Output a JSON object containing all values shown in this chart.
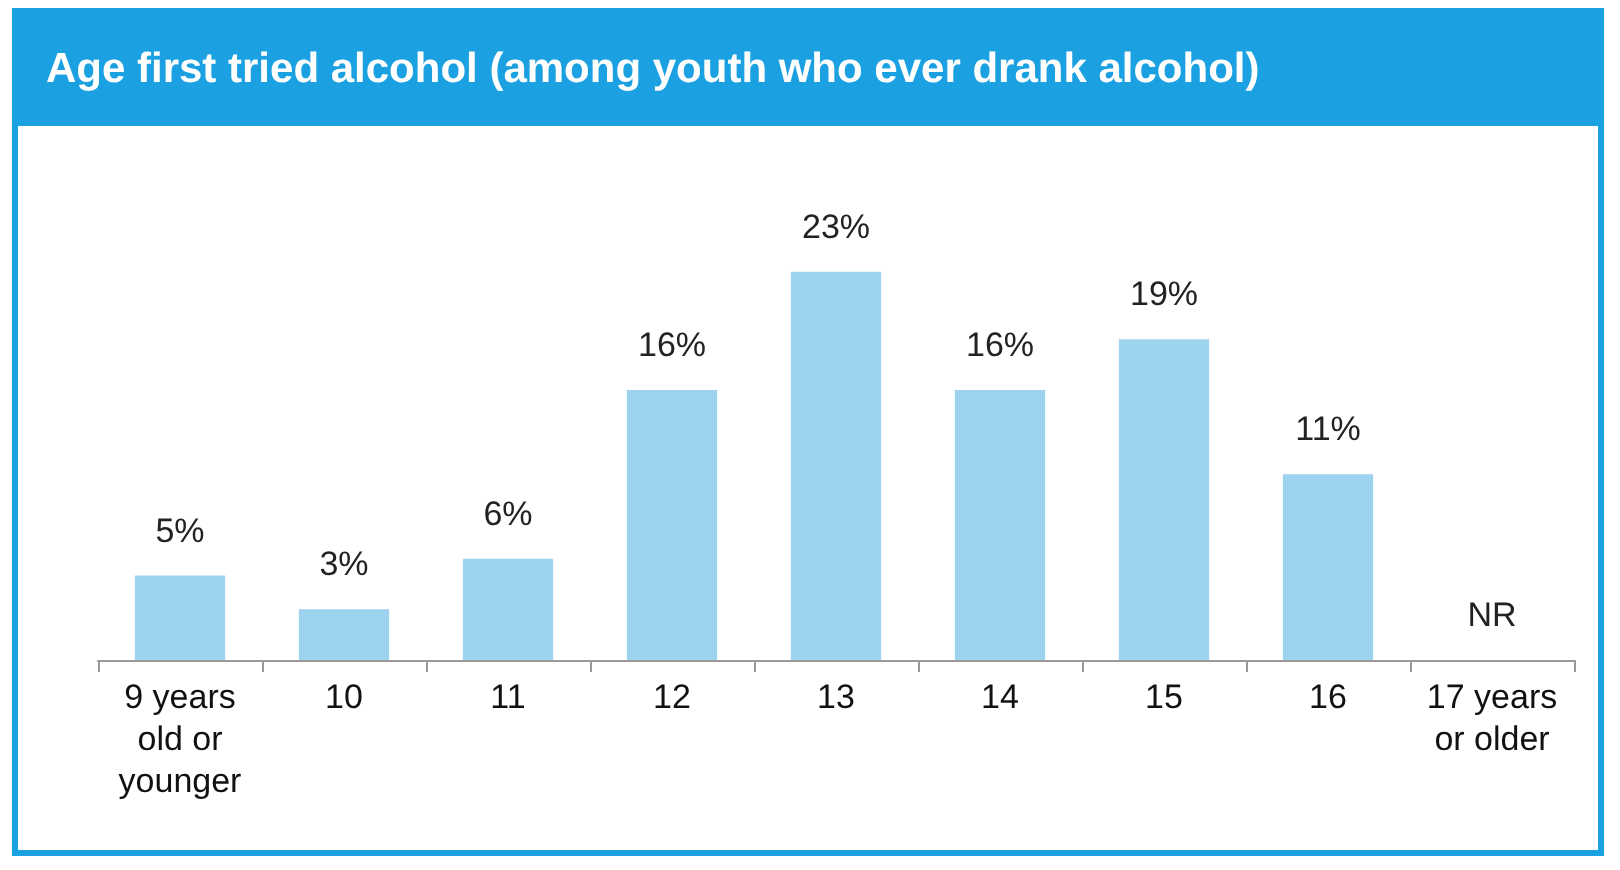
{
  "chart_data": {
    "type": "bar",
    "title": "Age first tried alcohol (among youth who ever drank alcohol)",
    "categories": [
      "9 years\nold or\nyounger",
      "10",
      "11",
      "12",
      "13",
      "14",
      "15",
      "16",
      "17 years\nor older"
    ],
    "values": [
      5,
      3,
      6,
      16,
      23,
      16,
      19,
      11,
      null
    ],
    "value_labels": [
      "5%",
      "3%",
      "6%",
      "16%",
      "23%",
      "16%",
      "19%",
      "11%",
      "NR"
    ],
    "color": "#9dd3ee"
  }
}
